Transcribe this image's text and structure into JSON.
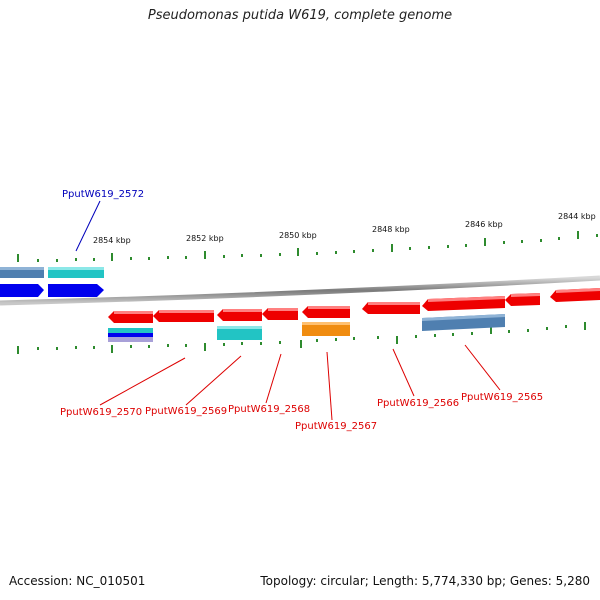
{
  "title": "Pseudomonas putida W619, complete genome",
  "footer": {
    "accession": "Accession: NC_010501",
    "topology": "Topology: circular; Length: 5,774,330 bp; Genes: 5,280"
  },
  "scale_labels": [
    "2854 kbp",
    "2852 kbp",
    "2850 kbp",
    "2848 kbp",
    "2846 kbp",
    "2844 kbp"
  ],
  "gene_labels": {
    "g2572": "PputW619_2572",
    "g2570": "PputW619_2570",
    "g2569": "PputW619_2569",
    "g2568": "PputW619_2568",
    "g2567": "PputW619_2567",
    "g2566": "PputW619_2566",
    "g2565": "PputW619_2565"
  },
  "colors": {
    "backbone": "#888888",
    "tick": "#2e8b2e",
    "forward_label": "#0000bb",
    "reverse_label": "#dd0000",
    "cds_forward": "#0000ee",
    "cds_reverse": "#ee0000",
    "steelblue": "#4f7fb0",
    "cyan": "#22c4c4",
    "orange": "#f08c10"
  }
}
